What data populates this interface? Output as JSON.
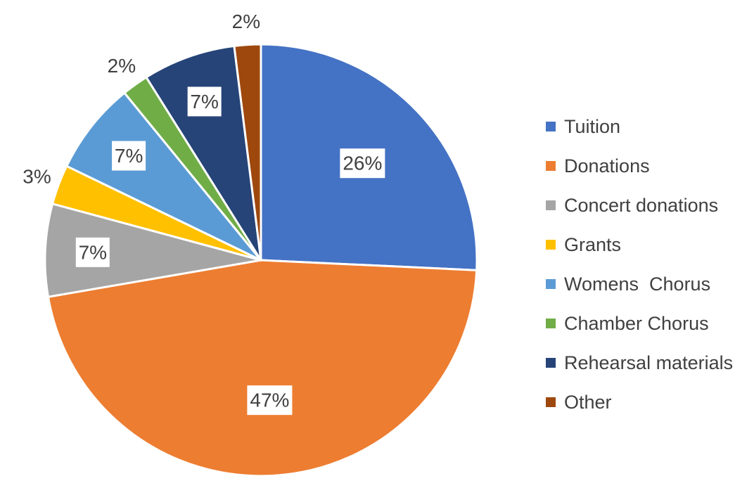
{
  "chart_data": {
    "type": "pie",
    "title": "",
    "start_angle_deg": 0,
    "direction": "clockwise",
    "legend_position": "right",
    "slices": [
      {
        "label": "Tuition",
        "value": 26,
        "display": "26%",
        "color": "#4472C4",
        "label_style": "inside-box"
      },
      {
        "label": "Donations",
        "value": 47,
        "display": "47%",
        "color": "#ED7D31",
        "label_style": "inside-box"
      },
      {
        "label": "Concert donations",
        "value": 7,
        "display": "7%",
        "color": "#A5A5A5",
        "label_style": "inside-box"
      },
      {
        "label": "Grants",
        "value": 3,
        "display": "3%",
        "color": "#FFC000",
        "label_style": "outside"
      },
      {
        "label": "Womens  Chorus",
        "value": 7,
        "display": "7%",
        "color": "#5B9BD5",
        "label_style": "inside-box"
      },
      {
        "label": "Chamber Chorus",
        "value": 2,
        "display": "2%",
        "color": "#70AD47",
        "label_style": "outside"
      },
      {
        "label": "Rehearsal materials",
        "value": 7,
        "display": "7%",
        "color": "#264478",
        "label_style": "inside-box"
      },
      {
        "label": "Other",
        "value": 2,
        "display": "2%",
        "color": "#9E480E",
        "label_style": "outside"
      }
    ]
  }
}
